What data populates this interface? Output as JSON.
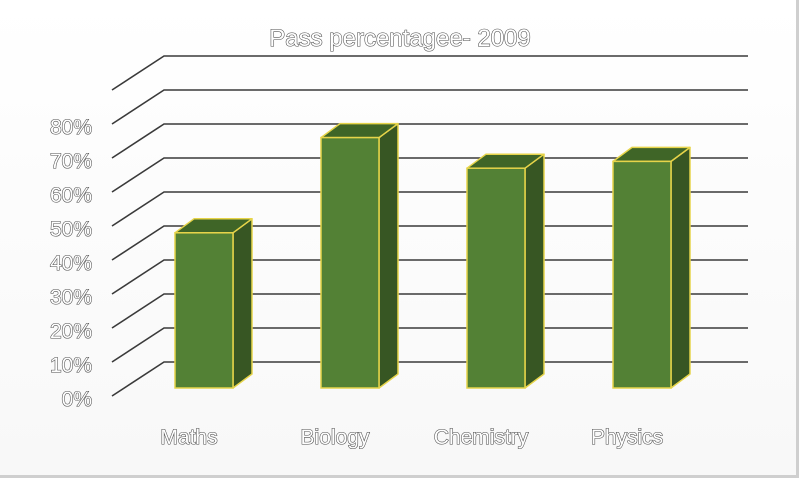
{
  "chart_data": {
    "type": "bar",
    "title": "Pass percentagee- 2009",
    "categories": [
      "Maths",
      "Biology",
      "Chemistry",
      "Physics"
    ],
    "values": [
      48,
      76,
      67,
      69
    ],
    "ylim": [
      0,
      90
    ],
    "yticks": [
      {
        "value": 0,
        "label": "0%"
      },
      {
        "value": 10,
        "label": "10%"
      },
      {
        "value": 20,
        "label": "20%"
      },
      {
        "value": 30,
        "label": "30%"
      },
      {
        "value": 40,
        "label": "40%"
      },
      {
        "value": 50,
        "label": "50%"
      },
      {
        "value": 60,
        "label": "60%"
      },
      {
        "value": 70,
        "label": "70%"
      },
      {
        "value": 80,
        "label": "80%"
      }
    ],
    "grid": true,
    "style": "3d-column",
    "colors": {
      "bar_front": "#538135",
      "bar_top": "#3f6527",
      "bar_side": "#375623",
      "bar_outline": "#e6d44a",
      "gridline": "#3a3a3a"
    }
  }
}
